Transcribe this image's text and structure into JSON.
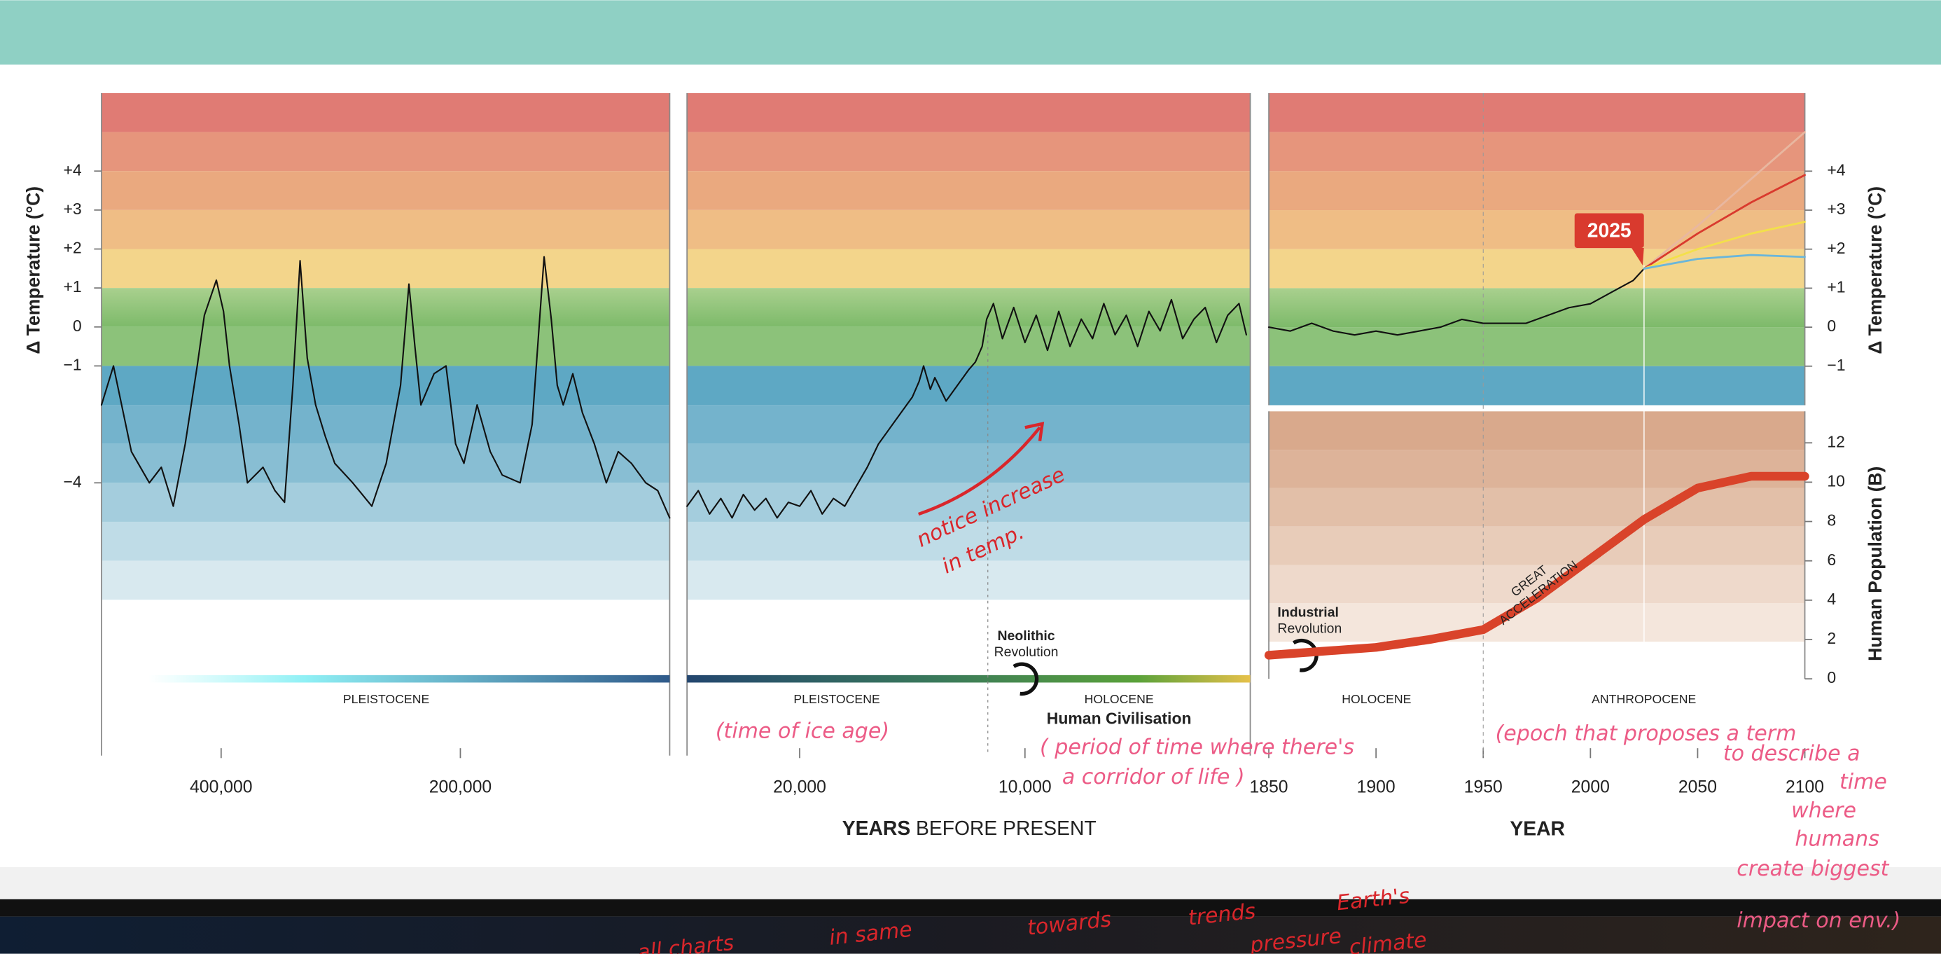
{
  "chart_data": [
    {
      "type": "line",
      "ylabel": "Δ Temperature (°C)",
      "xlim": [
        500000,
        25000
      ],
      "ylim": [
        -11,
        6
      ],
      "color": "#111111",
      "xticks": [
        {
          "value": 400000,
          "label": "400,000"
        },
        {
          "value": 200000,
          "label": "200,000"
        }
      ],
      "yticks": [
        {
          "value": 4,
          "label": "+4"
        },
        {
          "value": 3,
          "label": "+3"
        },
        {
          "value": 2,
          "label": "+2"
        },
        {
          "value": 1,
          "label": "+1"
        },
        0,
        {
          "value": -1,
          "label": "−1"
        },
        {
          "value": -4,
          "label": "−4"
        }
      ],
      "x": [
        500000,
        490000,
        475000,
        460000,
        450000,
        440000,
        430000,
        420000,
        414000,
        404000,
        398000,
        393000,
        385000,
        378000,
        365000,
        355000,
        347000,
        340000,
        334000,
        328000,
        321000,
        313000,
        305000,
        290000,
        274000,
        262000,
        250000,
        243000,
        238000,
        233000,
        222000,
        212000,
        204000,
        197000,
        186000,
        175000,
        165000,
        150000,
        140000,
        130000,
        124000,
        119000,
        114000,
        106000,
        98000,
        88000,
        78000,
        68000,
        57000,
        45000,
        35000,
        25000
      ],
      "values": [
        -2.0,
        -1.0,
        -3.2,
        -4.0,
        -3.6,
        -4.6,
        -3.0,
        -1.0,
        0.3,
        1.2,
        0.4,
        -1.0,
        -2.5,
        -4.0,
        -3.6,
        -4.2,
        -4.5,
        -1.5,
        1.7,
        -0.8,
        -2.0,
        -2.8,
        -3.5,
        -4.0,
        -4.6,
        -3.5,
        -1.5,
        1.1,
        -0.5,
        -2.0,
        -1.2,
        -1.0,
        -3.0,
        -3.5,
        -2.0,
        -3.2,
        -3.8,
        -4.0,
        -2.5,
        1.8,
        0.2,
        -1.5,
        -2.0,
        -1.2,
        -2.2,
        -3.0,
        -4.0,
        -3.2,
        -3.5,
        -4.0,
        -4.2,
        -4.9
      ],
      "epochs": [
        "PLEISTOCENE"
      ]
    },
    {
      "type": "line",
      "xlim": [
        25000,
        0
      ],
      "ylim": [
        -11,
        6
      ],
      "color": "#111111",
      "xticks": [
        {
          "value": 20000,
          "label": "20,000"
        },
        {
          "value": 10000,
          "label": "10,000"
        }
      ],
      "x": [
        25000,
        24500,
        24000,
        23500,
        23000,
        22500,
        22000,
        21500,
        21000,
        20500,
        20000,
        19500,
        19000,
        18500,
        18000,
        17500,
        17000,
        16500,
        16000,
        15500,
        15000,
        14700,
        14500,
        14200,
        14000,
        13500,
        13000,
        12500,
        12200,
        11900,
        11700,
        11400,
        11000,
        10500,
        10000,
        9500,
        9000,
        8500,
        8000,
        7500,
        7000,
        6500,
        6000,
        5500,
        5000,
        4500,
        4000,
        3500,
        3000,
        2500,
        2000,
        1500,
        1000,
        500,
        175
      ],
      "values": [
        -4.6,
        -4.2,
        -4.8,
        -4.4,
        -4.9,
        -4.3,
        -4.7,
        -4.4,
        -4.9,
        -4.5,
        -4.6,
        -4.2,
        -4.8,
        -4.4,
        -4.6,
        -4.1,
        -3.6,
        -3.0,
        -2.6,
        -2.2,
        -1.8,
        -1.4,
        -1.0,
        -1.6,
        -1.3,
        -1.9,
        -1.5,
        -1.1,
        -0.9,
        -0.5,
        0.2,
        0.6,
        -0.3,
        0.5,
        -0.4,
        0.3,
        -0.6,
        0.4,
        -0.5,
        0.2,
        -0.3,
        0.6,
        -0.2,
        0.3,
        -0.5,
        0.4,
        -0.1,
        0.7,
        -0.3,
        0.2,
        0.5,
        -0.4,
        0.3,
        0.6,
        -0.2
      ],
      "epochs": [
        "PLEISTOCENE",
        "HOLOCENE"
      ],
      "event": [
        "Neolithic",
        "Revolution"
      ],
      "caption": "Human Civilisation",
      "xlabel": [
        "YEARS",
        "BEFORE PRESENT"
      ]
    },
    {
      "type": "line",
      "ylabel": "Δ Temperature (°C)",
      "xlim": [
        1850,
        2100
      ],
      "ylim": [
        -2,
        6
      ],
      "yticks": [
        {
          "value": 4,
          "label": "+4"
        },
        {
          "value": 3,
          "label": "+3"
        },
        {
          "value": 2,
          "label": "+2"
        },
        {
          "value": 1,
          "label": "+1"
        },
        0,
        {
          "value": -1,
          "label": "−1"
        }
      ],
      "series": [
        {
          "color": "#111111",
          "x": [
            1850,
            1860,
            1870,
            1880,
            1890,
            1900,
            1910,
            1920,
            1930,
            1940,
            1950,
            1960,
            1970,
            1980,
            1990,
            2000,
            2010,
            2020,
            2025
          ],
          "values": [
            0.0,
            -0.1,
            0.1,
            -0.1,
            -0.2,
            -0.1,
            -0.2,
            -0.1,
            0.0,
            0.2,
            0.1,
            0.1,
            0.1,
            0.3,
            0.5,
            0.6,
            0.9,
            1.2,
            1.5
          ]
        },
        {
          "color": "#e8b7a0",
          "x": [
            2025,
            2050,
            2075,
            2100
          ],
          "values": [
            1.5,
            2.6,
            3.8,
            5.0
          ]
        },
        {
          "color": "#d93a2e",
          "x": [
            2025,
            2050,
            2075,
            2100
          ],
          "values": [
            1.5,
            2.4,
            3.2,
            3.9
          ]
        },
        {
          "color": "#f3e04a",
          "x": [
            2025,
            2050,
            2075,
            2100
          ],
          "values": [
            1.5,
            2.0,
            2.4,
            2.7
          ]
        },
        {
          "color": "#6ab6da",
          "x": [
            2025,
            2050,
            2075,
            2100
          ],
          "values": [
            1.5,
            1.75,
            1.85,
            1.8
          ]
        }
      ],
      "callout": "2025"
    },
    {
      "type": "line",
      "ylabel": "Human Population (B)",
      "xlim": [
        1850,
        2100
      ],
      "ylim": [
        0,
        13.6
      ],
      "color": "#d9432a",
      "yticks": [
        0,
        2,
        4,
        6,
        8,
        10,
        12
      ],
      "xticks": [
        1850,
        1900,
        1950,
        2000,
        2050,
        2100
      ],
      "xlabel": "YEAR",
      "x": [
        1850,
        1875,
        1900,
        1925,
        1950,
        1975,
        2000,
        2025,
        2050,
        2075,
        2100
      ],
      "values": [
        1.2,
        1.4,
        1.6,
        2.0,
        2.5,
        4.1,
        6.1,
        8.1,
        9.7,
        10.3,
        10.3
      ],
      "event": [
        "Industrial",
        "Revolution"
      ],
      "phase": [
        "GREAT",
        "ACCELERATION"
      ],
      "epochs": [
        "HOLOCENE",
        "ANTHROPOCENE"
      ]
    }
  ],
  "annotations": [
    [
      "notice increase",
      "in temp."
    ],
    [
      "(time of ice age)"
    ],
    [
      "( period of time where there's",
      "a corridor of life )"
    ],
    [
      "(epoch that proposes a term",
      "to describe a",
      "time",
      "where",
      "humans",
      "create biggest",
      "impact on env.)"
    ],
    [
      "all charts",
      "in same",
      "towards",
      "trends",
      "pressure",
      "Earth's",
      "climate"
    ]
  ]
}
